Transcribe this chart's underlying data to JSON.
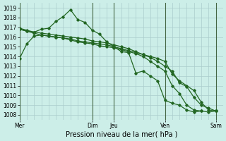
{
  "background_color": "#cceee8",
  "grid_color": "#aacccc",
  "line_color": "#226622",
  "xlabel": "Pression niveau de la mer( hPa )",
  "ylim": [
    1007.5,
    1019.5
  ],
  "yticks": [
    1008,
    1009,
    1010,
    1011,
    1012,
    1013,
    1014,
    1015,
    1016,
    1017,
    1018,
    1019
  ],
  "x_day_labels": [
    "Mer",
    "Dim",
    "Jeu",
    "Ven",
    "Sam"
  ],
  "x_day_positions": [
    0,
    10,
    13,
    20,
    27
  ],
  "xlim": [
    0,
    28
  ],
  "lines": [
    {
      "x": [
        0,
        1,
        2,
        3,
        4,
        5,
        6,
        7,
        8,
        9,
        10,
        11,
        12,
        13,
        14,
        15,
        16,
        17,
        18,
        19,
        20,
        21,
        22,
        23,
        24,
        25,
        26,
        27
      ],
      "y": [
        1013.8,
        1015.3,
        1016.1,
        1016.2,
        1016.1,
        1016.0,
        1015.9,
        1015.7,
        1015.5,
        1015.4,
        1015.3,
        1015.1,
        1015.0,
        1014.9,
        1014.7,
        1014.5,
        1014.3,
        1014.0,
        1013.5,
        1013.0,
        1012.5,
        1011.0,
        1010.2,
        1009.0,
        1008.5,
        1008.4,
        1008.3,
        1008.4
      ]
    },
    {
      "x": [
        0,
        1,
        2,
        3,
        4,
        5,
        6,
        7,
        8,
        9,
        10,
        11,
        12,
        13,
        14,
        15,
        16,
        17,
        18,
        19,
        20,
        21,
        22,
        23,
        24,
        25
      ],
      "y": [
        1016.8,
        1016.6,
        1016.5,
        1016.8,
        1016.9,
        1017.6,
        1018.1,
        1018.8,
        1017.8,
        1017.5,
        1016.7,
        1016.3,
        1015.5,
        1015.0,
        1014.5,
        1014.4,
        1012.3,
        1012.5,
        1012.0,
        1011.5,
        1009.5,
        1009.2,
        1009.0,
        1008.5,
        1008.3,
        1008.4
      ]
    },
    {
      "x": [
        0,
        1,
        2,
        3,
        4,
        5,
        6,
        7,
        8,
        9,
        10,
        11,
        12,
        13,
        14,
        15,
        16,
        17,
        18,
        19,
        20,
        21,
        22,
        23,
        24,
        25,
        26,
        27
      ],
      "y": [
        1016.8,
        1016.6,
        1016.4,
        1016.2,
        1016.1,
        1016.0,
        1015.9,
        1015.8,
        1015.6,
        1015.5,
        1015.4,
        1015.3,
        1015.2,
        1015.0,
        1014.8,
        1014.6,
        1014.4,
        1014.2,
        1014.0,
        1013.8,
        1013.5,
        1012.2,
        1011.5,
        1011.0,
        1010.5,
        1009.3,
        1008.5,
        1008.4
      ]
    },
    {
      "x": [
        0,
        1,
        2,
        3,
        4,
        5,
        6,
        7,
        8,
        9,
        10,
        11,
        12,
        13,
        14,
        15,
        16,
        17,
        18,
        19,
        20,
        21,
        22,
        23,
        24,
        25,
        26,
        27
      ],
      "y": [
        1016.9,
        1016.7,
        1016.5,
        1016.4,
        1016.3,
        1016.2,
        1016.1,
        1016.0,
        1015.9,
        1015.8,
        1015.6,
        1015.5,
        1015.4,
        1015.2,
        1015.0,
        1014.8,
        1014.5,
        1014.2,
        1013.9,
        1013.5,
        1013.0,
        1012.5,
        1011.3,
        1010.9,
        1009.8,
        1009.0,
        1008.7,
        1008.4
      ]
    }
  ]
}
